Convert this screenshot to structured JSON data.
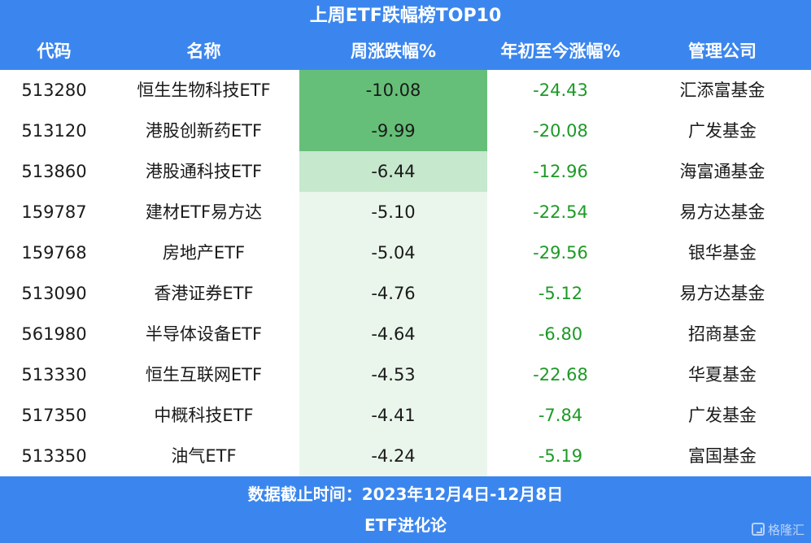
{
  "title": "上周ETF跌幅榜TOP10",
  "columns": {
    "code": "代码",
    "name": "名称",
    "week": "周涨跌幅%",
    "ytd": "年初至今涨幅%",
    "company": "管理公司"
  },
  "rows": [
    {
      "code": "513280",
      "name": "恒生生物科技ETF",
      "week": "-10.08",
      "ytd": "-24.43",
      "company": "汇添富基金"
    },
    {
      "code": "513120",
      "name": "港股创新药ETF",
      "week": "-9.99",
      "ytd": "-20.08",
      "company": "广发基金"
    },
    {
      "code": "513860",
      "name": "港股通科技ETF",
      "week": "-6.44",
      "ytd": "-12.96",
      "company": "海富通基金"
    },
    {
      "code": "159787",
      "name": "建材ETF易方达",
      "week": "-5.10",
      "ytd": "-22.54",
      "company": "易方达基金"
    },
    {
      "code": "159768",
      "name": "房地产ETF",
      "week": "-5.04",
      "ytd": "-29.56",
      "company": "银华基金"
    },
    {
      "code": "513090",
      "name": "香港证券ETF",
      "week": "-4.76",
      "ytd": "-5.12",
      "company": "易方达基金"
    },
    {
      "code": "561980",
      "name": "半导体设备ETF",
      "week": "-4.64",
      "ytd": "-6.80",
      "company": "招商基金"
    },
    {
      "code": "513330",
      "name": "恒生互联网ETF",
      "week": "-4.53",
      "ytd": "-22.68",
      "company": "华夏基金"
    },
    {
      "code": "517350",
      "name": "中概科技ETF",
      "week": "-4.41",
      "ytd": "-7.84",
      "company": "广发基金"
    },
    {
      "code": "513350",
      "name": "油气ETF",
      "week": "-4.24",
      "ytd": "-5.19",
      "company": "富国基金"
    }
  ],
  "footer": {
    "date_note": "数据截止时间：2023年12月4日-12月8日",
    "source": "ETF进化论"
  },
  "watermark": "格隆汇",
  "colors": {
    "header_bg": "#3b86ee",
    "ytd_text": "#1c9a25",
    "heat_strong": "#66bf78",
    "heat_mid": "#c6e8cd",
    "heat_light": "#eaf6ec"
  }
}
